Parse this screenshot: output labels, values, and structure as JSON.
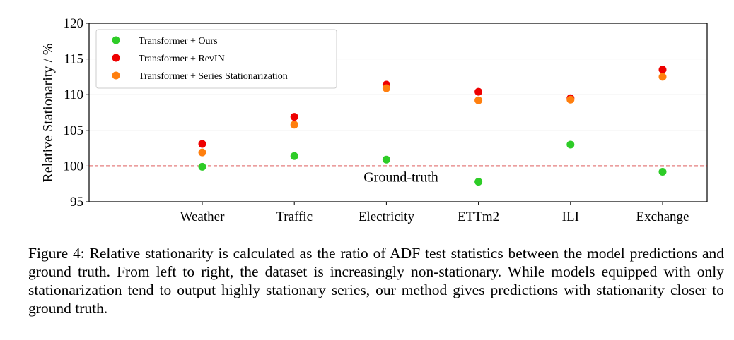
{
  "chart_data": {
    "type": "scatter",
    "ylabel": "Relative Stationarity / %",
    "xlabel": "",
    "ylim": [
      95,
      120
    ],
    "yticks": [
      95,
      100,
      105,
      110,
      115,
      120
    ],
    "categories": [
      "Weather",
      "Traffic",
      "Electricity",
      "ETTm2",
      "ILI",
      "Exchange"
    ],
    "grid": "horizontal",
    "legend_position": "top-left",
    "series": [
      {
        "name": "Transformer + Ours",
        "color": "#2ecc27",
        "values": [
          99.9,
          101.4,
          100.9,
          97.8,
          103.0,
          99.2
        ]
      },
      {
        "name": "Transformer + RevIN",
        "color": "#ee0000",
        "values": [
          103.1,
          106.9,
          111.4,
          110.4,
          109.5,
          113.5
        ]
      },
      {
        "name": "Transformer + Series Stationarization",
        "color": "#ff7f0e",
        "values": [
          101.9,
          105.8,
          110.9,
          109.2,
          109.3,
          112.5
        ]
      }
    ],
    "reference_line": {
      "y": 100,
      "label": "Ground-truth",
      "color": "#cc0000",
      "style": "dashed"
    }
  },
  "caption": "Figure 4: Relative stationarity is calculated as the ratio of ADF test statistics between the model predictions and ground truth. From left to right, the dataset is increasingly non-stationary. While models equipped with only stationarization tend to output highly stationary series, our method gives predictions with stationarity closer to ground truth."
}
